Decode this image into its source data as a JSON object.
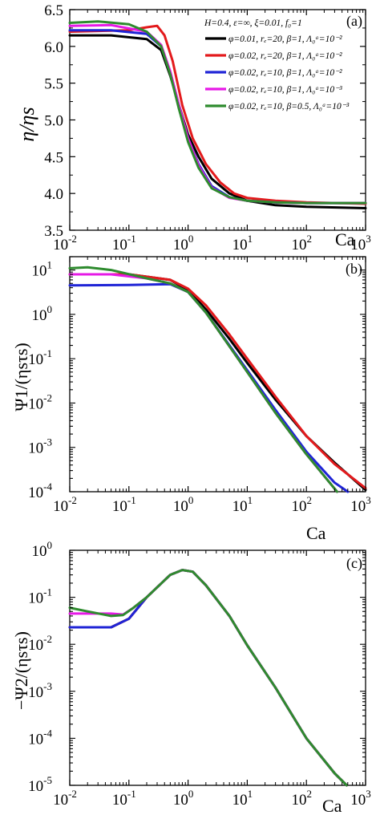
{
  "colors": {
    "black": "#000000",
    "red": "#e31a1c",
    "blue": "#1f24d6",
    "magenta": "#e619e6",
    "green": "#2e8b2e"
  },
  "legend": {
    "header": "H=0.4,  ε=∞,  ξ=0.01, f₀=1",
    "entries": [
      {
        "color": "black",
        "text": "φ=0.01, rₑ=20, β=1, Λ₀ᵃ=10⁻²"
      },
      {
        "color": "red",
        "text": "φ=0.02, rₑ=20, β=1, Λ₀ᵃ=10⁻²"
      },
      {
        "color": "blue",
        "text": "φ=0.02, rₑ=10, β=1, Λ₀ᵃ=10⁻²"
      },
      {
        "color": "magenta",
        "text": "φ=0.02, rₑ=10, β=1, Λ₀ᵃ=10⁻³"
      },
      {
        "color": "green",
        "text": "φ=0.02, rₑ=10, β=0.5, Λ₀ᵃ=10⁻³"
      }
    ]
  },
  "chart_data": [
    {
      "type": "line",
      "panel_label": "(a)",
      "ylabel": "η/ηs",
      "xlabel": "Ca",
      "xscale": "log",
      "yscale": "linear",
      "xlim": [
        0.01,
        1000
      ],
      "ylim": [
        3.5,
        6.5
      ],
      "xticks": [
        "10-2",
        "10-1",
        "100",
        "101",
        "102",
        "103"
      ],
      "yticks": [
        "3.5",
        "4.0",
        "4.5",
        "5.0",
        "5.5",
        "6.0",
        "6.5"
      ],
      "series": [
        {
          "color": "black",
          "x": [
            0.01,
            0.05,
            0.2,
            0.35,
            0.5,
            0.7,
            1.0,
            1.5,
            2.5,
            5,
            10,
            30,
            100,
            1000
          ],
          "y": [
            6.15,
            6.15,
            6.1,
            5.95,
            5.6,
            5.2,
            4.8,
            4.5,
            4.2,
            4.0,
            3.9,
            3.84,
            3.82,
            3.8
          ]
        },
        {
          "color": "red",
          "x": [
            0.01,
            0.1,
            0.2,
            0.3,
            0.4,
            0.55,
            0.8,
            1.2,
            2.0,
            3.5,
            6,
            10,
            30,
            100,
            1000
          ],
          "y": [
            6.2,
            6.22,
            6.26,
            6.28,
            6.15,
            5.8,
            5.2,
            4.75,
            4.4,
            4.15,
            4.0,
            3.94,
            3.9,
            3.88,
            3.86
          ]
        },
        {
          "color": "blue",
          "x": [
            0.01,
            0.05,
            0.2,
            0.35,
            0.5,
            0.7,
            1.0,
            1.5,
            2.5,
            5,
            10,
            30,
            100,
            1000
          ],
          "y": [
            6.22,
            6.22,
            6.17,
            6.0,
            5.65,
            5.2,
            4.75,
            4.4,
            4.1,
            3.95,
            3.9,
            3.88,
            3.87,
            3.87
          ]
        },
        {
          "color": "magenta",
          "x": [
            0.01,
            0.05,
            0.2,
            0.35,
            0.5,
            0.7,
            1.0,
            1.5,
            2.5,
            5,
            10,
            30,
            100,
            1000
          ],
          "y": [
            6.28,
            6.29,
            6.2,
            6.02,
            5.66,
            5.2,
            4.75,
            4.38,
            4.08,
            3.94,
            3.9,
            3.88,
            3.87,
            3.87
          ]
        },
        {
          "color": "green",
          "x": [
            0.01,
            0.03,
            0.1,
            0.2,
            0.35,
            0.5,
            0.7,
            1.0,
            1.5,
            2.5,
            5,
            10,
            30,
            100,
            1000
          ],
          "y": [
            6.32,
            6.34,
            6.3,
            6.2,
            6.0,
            5.62,
            5.15,
            4.7,
            4.35,
            4.07,
            3.95,
            3.9,
            3.88,
            3.87,
            3.87
          ]
        }
      ]
    },
    {
      "type": "line",
      "panel_label": "(b)",
      "ylabel": "Ψ1/(ηsτs)",
      "xlabel": "Ca",
      "xscale": "log",
      "yscale": "log",
      "xlim": [
        0.01,
        1000
      ],
      "ylim": [
        0.0001,
        20
      ],
      "xticks": [
        "10-2",
        "10-1",
        "100",
        "101",
        "102",
        "103"
      ],
      "yticks": [
        "10-4",
        "10-3",
        "10-2",
        "10-1",
        "100",
        "101"
      ],
      "series": [
        {
          "color": "black",
          "x": [
            0.01,
            0.1,
            0.5,
            1,
            2,
            5,
            10,
            30,
            100,
            300,
            1000
          ],
          "y": [
            8,
            8,
            6,
            3.5,
            1.3,
            0.28,
            0.08,
            0.012,
            0.0018,
            0.00045,
            0.00011
          ]
        },
        {
          "color": "red",
          "x": [
            0.01,
            0.1,
            0.5,
            1,
            2,
            5,
            10,
            30,
            100,
            300,
            1000
          ],
          "y": [
            8,
            8,
            6,
            3.8,
            1.6,
            0.35,
            0.1,
            0.014,
            0.0018,
            0.00042,
            0.00012
          ]
        },
        {
          "color": "blue",
          "x": [
            0.01,
            0.1,
            0.5,
            1,
            2,
            5,
            10,
            30,
            100,
            300,
            500
          ],
          "y": [
            4.5,
            4.6,
            4.8,
            3.2,
            1.1,
            0.2,
            0.055,
            0.007,
            0.0008,
            0.00016,
            0.0001
          ]
        },
        {
          "color": "magenta",
          "x": [
            0.01,
            0.05,
            0.2,
            0.5,
            1,
            2,
            5,
            10,
            30,
            100,
            330
          ],
          "y": [
            8,
            8,
            6.5,
            5,
            3.2,
            1.1,
            0.19,
            0.05,
            0.006,
            0.0007,
            0.0001
          ]
        },
        {
          "color": "green",
          "x": [
            0.01,
            0.02,
            0.05,
            0.2,
            0.5,
            1,
            2,
            5,
            10,
            30,
            100,
            330
          ],
          "y": [
            11,
            11.5,
            10,
            6.5,
            5,
            3.2,
            1.1,
            0.19,
            0.05,
            0.006,
            0.0007,
            0.0001
          ]
        }
      ]
    },
    {
      "type": "line",
      "panel_label": "(c)",
      "ylabel": "−Ψ2/(ηsτs)",
      "xlabel": "Ca",
      "xscale": "log",
      "yscale": "log",
      "xlim": [
        0.01,
        1000
      ],
      "ylim": [
        1e-05,
        1
      ],
      "xticks": [
        "10-2",
        "10-1",
        "100",
        "101",
        "102",
        "103"
      ],
      "yticks": [
        "10-5",
        "10-4",
        "10-3",
        "10-2",
        "10-1",
        "100"
      ],
      "series": [
        {
          "color": "black",
          "x": [
            0.01,
            0.05,
            0.1,
            0.2,
            0.5,
            0.8,
            1.2,
            2,
            5,
            10,
            30,
            100,
            300,
            480
          ],
          "y": [
            0.023,
            0.023,
            0.035,
            0.1,
            0.3,
            0.38,
            0.35,
            0.18,
            0.04,
            0.0095,
            0.0012,
            0.0001,
            1.8e-05,
            1e-05
          ]
        },
        {
          "color": "red",
          "x": [
            0.01,
            0.05,
            0.1,
            0.2,
            0.5,
            0.8,
            1.2,
            2,
            5,
            10,
            30,
            100,
            300,
            480
          ],
          "y": [
            0.023,
            0.023,
            0.035,
            0.1,
            0.3,
            0.38,
            0.35,
            0.18,
            0.04,
            0.0095,
            0.0012,
            0.0001,
            1.8e-05,
            1e-05
          ]
        },
        {
          "color": "blue",
          "x": [
            0.01,
            0.05,
            0.1,
            0.2,
            0.5,
            0.8,
            1.2,
            2,
            5,
            10,
            30,
            100,
            300,
            480
          ],
          "y": [
            0.023,
            0.023,
            0.035,
            0.1,
            0.3,
            0.38,
            0.35,
            0.18,
            0.04,
            0.0095,
            0.0012,
            0.0001,
            1.8e-05,
            1e-05
          ]
        },
        {
          "color": "magenta",
          "x": [
            0.01,
            0.05,
            0.08,
            0.12,
            0.2,
            0.5,
            0.8,
            1.2,
            2,
            5,
            10,
            30,
            100,
            300,
            480
          ],
          "y": [
            0.045,
            0.045,
            0.043,
            0.06,
            0.1,
            0.3,
            0.38,
            0.35,
            0.18,
            0.04,
            0.0095,
            0.0012,
            0.0001,
            1.8e-05,
            1e-05
          ]
        },
        {
          "color": "green",
          "x": [
            0.01,
            0.02,
            0.05,
            0.08,
            0.12,
            0.2,
            0.5,
            0.8,
            1.2,
            2,
            5,
            10,
            30,
            100,
            300,
            480
          ],
          "y": [
            0.06,
            0.05,
            0.04,
            0.042,
            0.06,
            0.1,
            0.3,
            0.38,
            0.35,
            0.18,
            0.04,
            0.0095,
            0.0012,
            0.0001,
            1.8e-05,
            1e-05
          ]
        }
      ]
    }
  ]
}
